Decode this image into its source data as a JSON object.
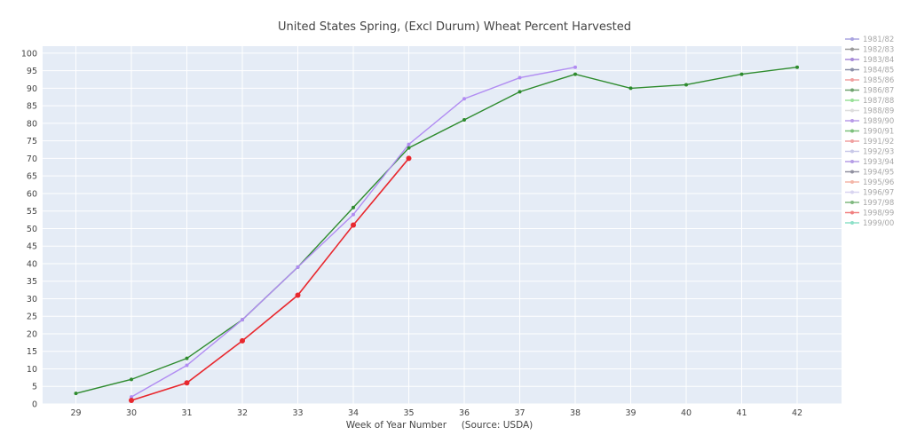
{
  "chart_data": {
    "type": "line",
    "title": "United States Spring, (Excl Durum) Wheat Percent Harvested",
    "xlabel": "Week of Year Number     (Source: USDA)",
    "ylabel": "",
    "xlim": [
      28.4,
      42.8
    ],
    "ylim": [
      0,
      102
    ],
    "x_ticks": [
      29,
      30,
      31,
      32,
      33,
      34,
      35,
      36,
      37,
      38,
      39,
      40,
      41,
      42
    ],
    "y_ticks": [
      0,
      5,
      10,
      15,
      20,
      25,
      30,
      35,
      40,
      45,
      50,
      55,
      60,
      65,
      70,
      75,
      80,
      85,
      90,
      95,
      100
    ],
    "grid": true,
    "legend_position": "right",
    "series": [
      {
        "name": "1981/82",
        "color": "#a9a4e0",
        "x": [],
        "y": []
      },
      {
        "name": "1982/83",
        "color": "#9a9a9a",
        "x": [],
        "y": []
      },
      {
        "name": "1983/84",
        "color": "#a78bd8",
        "x": [],
        "y": []
      },
      {
        "name": "1984/85",
        "color": "#8a8fa8",
        "x": [],
        "y": []
      },
      {
        "name": "1985/86",
        "color": "#f0a0a0",
        "x": [],
        "y": []
      },
      {
        "name": "1986/87",
        "color": "#6fa36f",
        "x": [],
        "y": []
      },
      {
        "name": "1987/88",
        "color": "#98e098",
        "x": [],
        "y": []
      },
      {
        "name": "1988/89",
        "color": "#dddddd",
        "x": [],
        "y": []
      },
      {
        "name": "1989/90",
        "color": "#b89ae8",
        "x": [],
        "y": []
      },
      {
        "name": "1990/91",
        "color": "#7cc07c",
        "x": [],
        "y": []
      },
      {
        "name": "1991/92",
        "color": "#f0a0a0",
        "x": [],
        "y": []
      },
      {
        "name": "1992/93",
        "color": "#c8c8e8",
        "x": [],
        "y": []
      },
      {
        "name": "1993/94",
        "color": "#b59de6",
        "x": [],
        "y": []
      },
      {
        "name": "1994/95",
        "color": "#9090a0",
        "x": [],
        "y": []
      },
      {
        "name": "1995/96",
        "color": "#f4b6a8",
        "x": [],
        "y": []
      },
      {
        "name": "1996/97",
        "color": "#d8d4f0",
        "x": [],
        "y": []
      },
      {
        "name": "1997/98",
        "color": "#2e8b2e",
        "x": [
          29,
          30,
          31,
          32,
          33,
          34,
          35,
          36,
          37,
          38,
          39,
          40,
          41,
          42
        ],
        "y": [
          3,
          7,
          13,
          24,
          39,
          56,
          73,
          81,
          89,
          94,
          90,
          91,
          94,
          96
        ]
      },
      {
        "name": "1998/99",
        "color": "#b18cf2",
        "x": [
          30,
          31,
          32,
          33,
          34,
          35,
          36,
          37,
          38
        ],
        "y": [
          2,
          11,
          24,
          39,
          54,
          74,
          87,
          93,
          96
        ]
      },
      {
        "name": "1999/00",
        "color": "#e8282e",
        "x": [
          30,
          31,
          32,
          33,
          34,
          35
        ],
        "y": [
          1,
          6,
          18,
          31,
          51,
          70
        ]
      }
    ],
    "legend_colors": [
      "#a9a4e0",
      "#9a9a9a",
      "#a78bd8",
      "#8a8fa8",
      "#f0a0a0",
      "#6fa36f",
      "#98e098",
      "#dddddd",
      "#b89ae8",
      "#7cc07c",
      "#f0a0a0",
      "#c8c8e8",
      "#b59de6",
      "#9090a0",
      "#f4b6a8",
      "#d8d4f0",
      "#7fb87f",
      "#f08080",
      "#8de0c8"
    ]
  },
  "colors": {
    "plot_background": "#e5ecf6",
    "grid": "#ffffff",
    "text": "#444444",
    "legend_text": "#a8a8a8"
  }
}
